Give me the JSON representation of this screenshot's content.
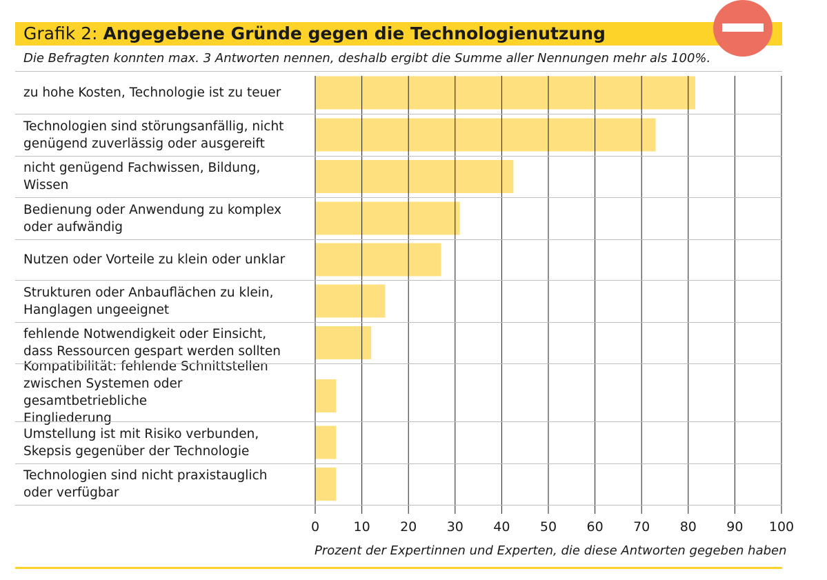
{
  "header": {
    "title_prefix": "Grafik 2:",
    "title_main": "Angegebene Gründe gegen die Technologienutzung",
    "subtitle": "Die Befragten konnten max. 3 Antworten nennen, deshalb ergibt die Summe aller Nennungen mehr als 100%.",
    "icon": "no-entry-icon",
    "accent_color": "#fdd32a",
    "icon_color": "#ec6f5f"
  },
  "chart_data": {
    "type": "bar",
    "orientation": "horizontal",
    "title": "Angegebene Gründe gegen die Technologienutzung",
    "xlabel": "Prozent der Expertinnen und Experten, die diese Antworten gegeben haben",
    "ylabel": "",
    "xlim": [
      0,
      100
    ],
    "ticks": [
      "0",
      "10",
      "20",
      "30",
      "40",
      "50",
      "60",
      "70",
      "80",
      "90",
      "100"
    ],
    "bar_color": "#fee07e",
    "categories": [
      [
        "zu hohe Kosten, Technologie ist zu teuer"
      ],
      [
        "Technologien sind störungsanfällig, nicht",
        "genügend zuverlässig oder ausgereift"
      ],
      [
        "nicht genügend Fachwissen, Bildung,",
        "Wissen"
      ],
      [
        "Bedienung oder Anwendung zu komplex",
        "oder aufwändig"
      ],
      [
        "Nutzen oder Vorteile zu klein oder unklar"
      ],
      [
        "Strukturen oder Anbauflächen zu klein,",
        "Hanglagen ungeeignet"
      ],
      [
        "fehlende Notwendigkeit oder Einsicht,",
        "dass Ressourcen gespart werden sollten"
      ],
      [
        "Kompatibilität: fehlende Schnittstellen",
        "zwischen Systemen oder gesamtbetriebliche",
        "Eingliederung"
      ],
      [
        "Umstellung ist mit Risiko verbunden,",
        "Skepsis gegenüber der Technologie"
      ],
      [
        "Technologien sind nicht praxistauglich",
        "oder verfügbar"
      ]
    ],
    "values": [
      81.5,
      73,
      42.5,
      31,
      27,
      15,
      12,
      4.5,
      4.5,
      4.5
    ]
  }
}
